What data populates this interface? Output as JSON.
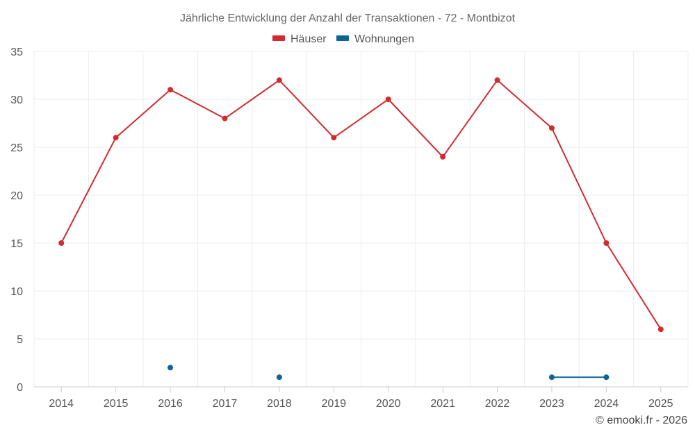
{
  "chart_data": {
    "type": "line",
    "title": "Jährliche Entwicklung der Anzahl der Transaktionen - 72 - Montbizot",
    "xlabel": "",
    "ylabel": "",
    "categories": [
      "2014",
      "2015",
      "2016",
      "2017",
      "2018",
      "2019",
      "2020",
      "2021",
      "2022",
      "2023",
      "2024",
      "2025"
    ],
    "ylim": [
      0,
      35
    ],
    "yticks": [
      "0",
      "5",
      "10",
      "15",
      "20",
      "25",
      "30",
      "35"
    ],
    "grid": true,
    "legend_position": "top-center",
    "series": [
      {
        "name": "Häuser",
        "color": "#d32a2f",
        "values": [
          15,
          26,
          31,
          28,
          32,
          26,
          30,
          24,
          32,
          27,
          15,
          6
        ]
      },
      {
        "name": "Wohnungen",
        "color": "#0e6497",
        "values": [
          null,
          null,
          2,
          null,
          1,
          null,
          null,
          null,
          null,
          1,
          1,
          null
        ]
      }
    ],
    "credit": "© emooki.fr - 2026"
  }
}
